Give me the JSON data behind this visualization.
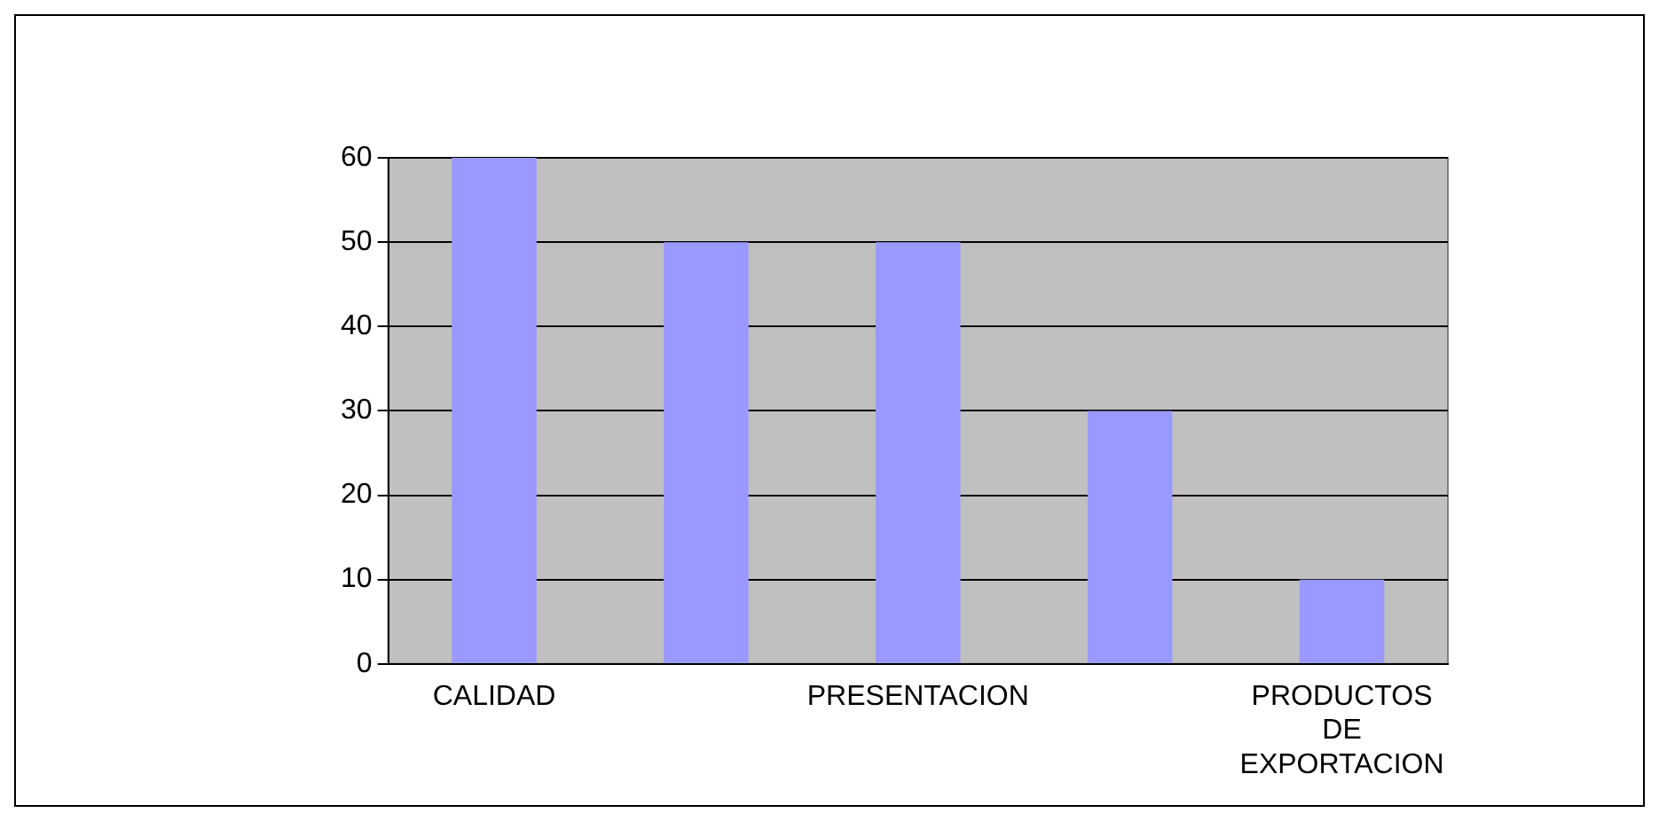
{
  "chart_data": {
    "type": "bar",
    "categories": [
      "CALIDAD",
      null,
      "PRESENTACION",
      null,
      "PRODUCTOS DE EXPORTACION"
    ],
    "values": [
      60,
      50,
      50,
      30,
      10
    ],
    "color": "#9999ff",
    "ylim": [
      0,
      60
    ],
    "yticks": [
      0,
      10,
      20,
      30,
      40,
      50,
      60
    ],
    "grid": "y",
    "legend": false
  }
}
